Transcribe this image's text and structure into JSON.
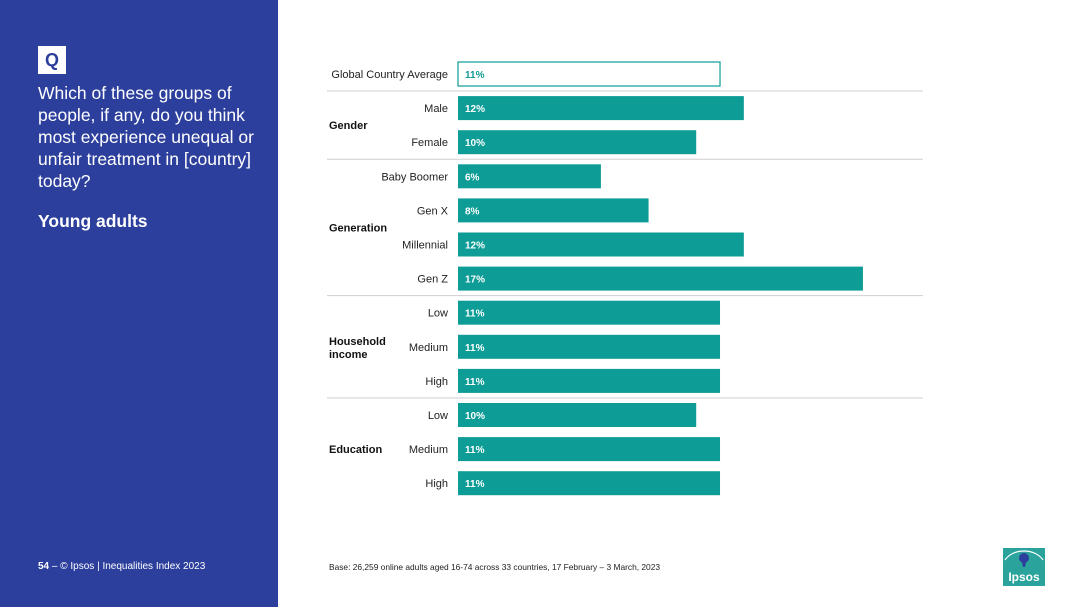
{
  "sidebar": {
    "badge": "Q",
    "question": "Which of these groups of people, if any, do you think most experience unequal or unfair treatment in [country] today?",
    "subtitle": "Young adults",
    "page_number": "54",
    "footer_text": "– © Ipsos | Inequalities Index 2023"
  },
  "base_note": "Base: 26,259 online adults aged 16-74 across 33 countries, 17 February – 3 March, 2023",
  "logo_text": "Ipsos",
  "colors": {
    "sidebar": "#2d3f9c",
    "bar": "#0e9c96",
    "logo": "#2aa39c"
  },
  "chart_data": {
    "type": "bar",
    "orientation": "horizontal",
    "value_format": "percent",
    "xlim": [
      0,
      18
    ],
    "grid": false,
    "legend": "none",
    "groups": [
      {
        "name": "",
        "items": [
          {
            "label": "Global Country Average",
            "value": 11,
            "style": "outline"
          }
        ]
      },
      {
        "name": "Gender",
        "items": [
          {
            "label": "Male",
            "value": 12
          },
          {
            "label": "Female",
            "value": 10
          }
        ]
      },
      {
        "name": "Generation",
        "items": [
          {
            "label": "Baby Boomer",
            "value": 6
          },
          {
            "label": "Gen X",
            "value": 8
          },
          {
            "label": "Millennial",
            "value": 12
          },
          {
            "label": "Gen Z",
            "value": 17
          }
        ]
      },
      {
        "name": "Household income",
        "items": [
          {
            "label": "Low",
            "value": 11
          },
          {
            "label": "Medium",
            "value": 11
          },
          {
            "label": "High",
            "value": 11
          }
        ]
      },
      {
        "name": "Education",
        "items": [
          {
            "label": "Low",
            "value": 10
          },
          {
            "label": "Medium",
            "value": 11
          },
          {
            "label": "High",
            "value": 11
          }
        ]
      }
    ]
  }
}
